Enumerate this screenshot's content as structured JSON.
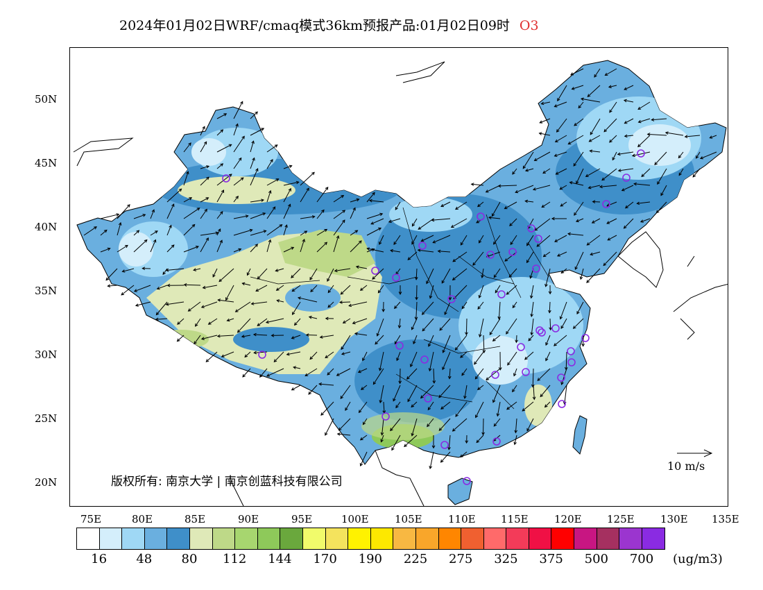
{
  "title": {
    "main": "2024年01月02日WRF/cmaq模式36km预报产品:01月02日09时",
    "species": "O3"
  },
  "axes": {
    "lat_labels": [
      "50N",
      "45N",
      "40N",
      "35N",
      "30N",
      "25N",
      "20N"
    ],
    "lon_labels": [
      "75E",
      "80E",
      "85E",
      "90E",
      "95E",
      "100E",
      "105E",
      "110E",
      "115E",
      "120E",
      "125E",
      "130E",
      "135E"
    ]
  },
  "copyright": "版权所有: 南京大学 | 南京创蓝科技有限公司",
  "wind_reference": {
    "label": "10 m/s",
    "icon": "arrow-right-icon"
  },
  "colorbar": {
    "colors": [
      "#ffffff",
      "#d4eefb",
      "#9fd8f5",
      "#6aafdf",
      "#3f8fc9",
      "#dfe9b8",
      "#bed988",
      "#a7d66f",
      "#8ec95a",
      "#6aa83d",
      "#f1fb6b",
      "#f4e35d",
      "#fff200",
      "#fde800",
      "#f8b842",
      "#f9a62a",
      "#ff8600",
      "#f06030",
      "#ff6a6a",
      "#f33b59",
      "#f01045",
      "#ff0000",
      "#c81682",
      "#a53060",
      "#9b35cf",
      "#8a2be2"
    ],
    "labels": [
      "16",
      "48",
      "80",
      "112",
      "144",
      "170",
      "190",
      "225",
      "275",
      "325",
      "375",
      "500",
      "700"
    ],
    "unit": "(ug/m3)"
  },
  "stations": {
    "icon": "station-circle-icon",
    "color": "#8a2be2",
    "count": 34
  },
  "colors": {
    "land_low": "#d4eefb",
    "land_mid": "#9fd8f5",
    "land_blue": "#6aafdf",
    "land_dark": "#3f8fc9",
    "plateau": "#dfe9b8",
    "plateau_green": "#bed988",
    "south_green": "#8ec95a"
  }
}
